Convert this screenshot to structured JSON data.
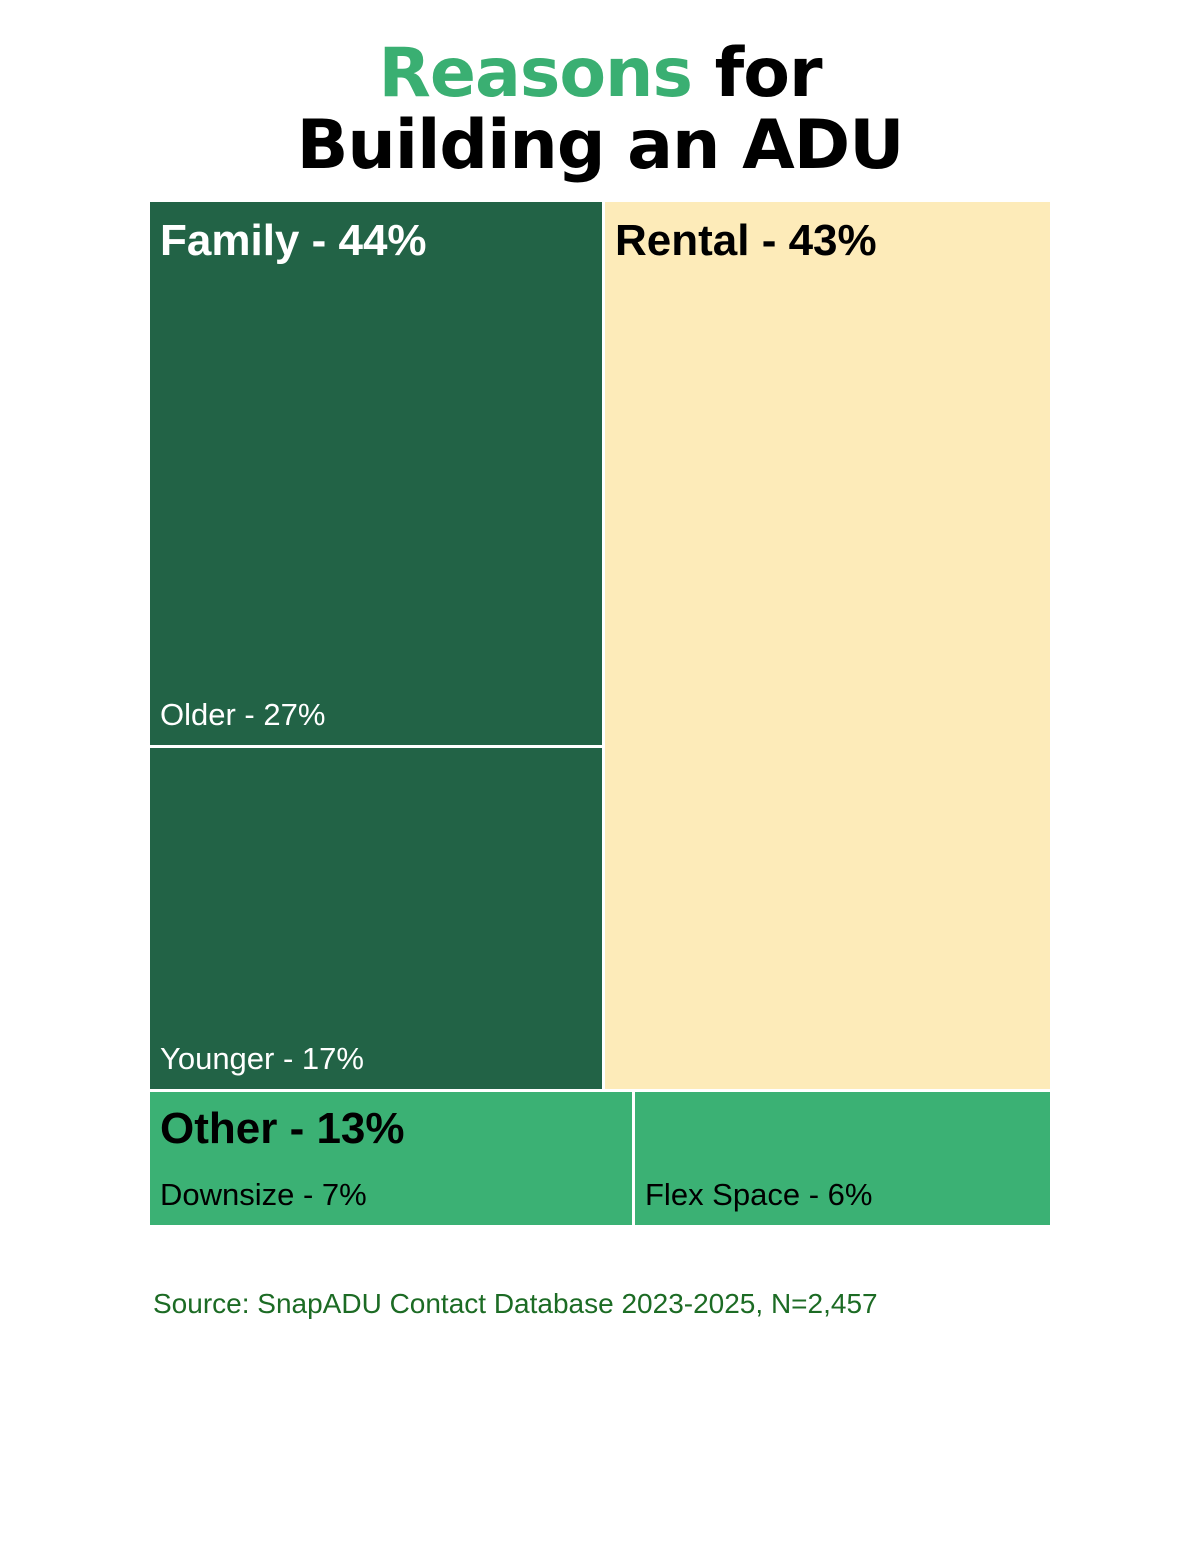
{
  "title": {
    "accent": "Reasons",
    "rest_line1": "for",
    "line2": "Building an ADU",
    "accent_color": "#3aaf72"
  },
  "chart_data": {
    "type": "treemap",
    "groups": [
      {
        "name": "Family",
        "label": "Family - 44%",
        "value": 44,
        "color": "#226346",
        "label_color": "#ffffff",
        "children": [
          {
            "name": "Older",
            "label": "Older - 27%",
            "value": 27
          },
          {
            "name": "Younger",
            "label": "Younger - 17%",
            "value": 17
          }
        ]
      },
      {
        "name": "Rental",
        "label": "Rental - 43%",
        "value": 43,
        "color": "#fdebb9",
        "label_color": "#000000",
        "children": []
      },
      {
        "name": "Other",
        "label": "Other - 13%",
        "value": 13,
        "color": "#3bb174",
        "label_color": "#000000",
        "children": [
          {
            "name": "Downsize",
            "label": "Downsize - 7%",
            "value": 7
          },
          {
            "name": "Flex Space",
            "label": "Flex Space - 6%",
            "value": 6
          }
        ]
      }
    ]
  },
  "source": "Source: SnapADU Contact Database 2023-2025, N=2,457",
  "colors": {
    "divider": "#ffffff",
    "source_text": "#1c6b24"
  }
}
